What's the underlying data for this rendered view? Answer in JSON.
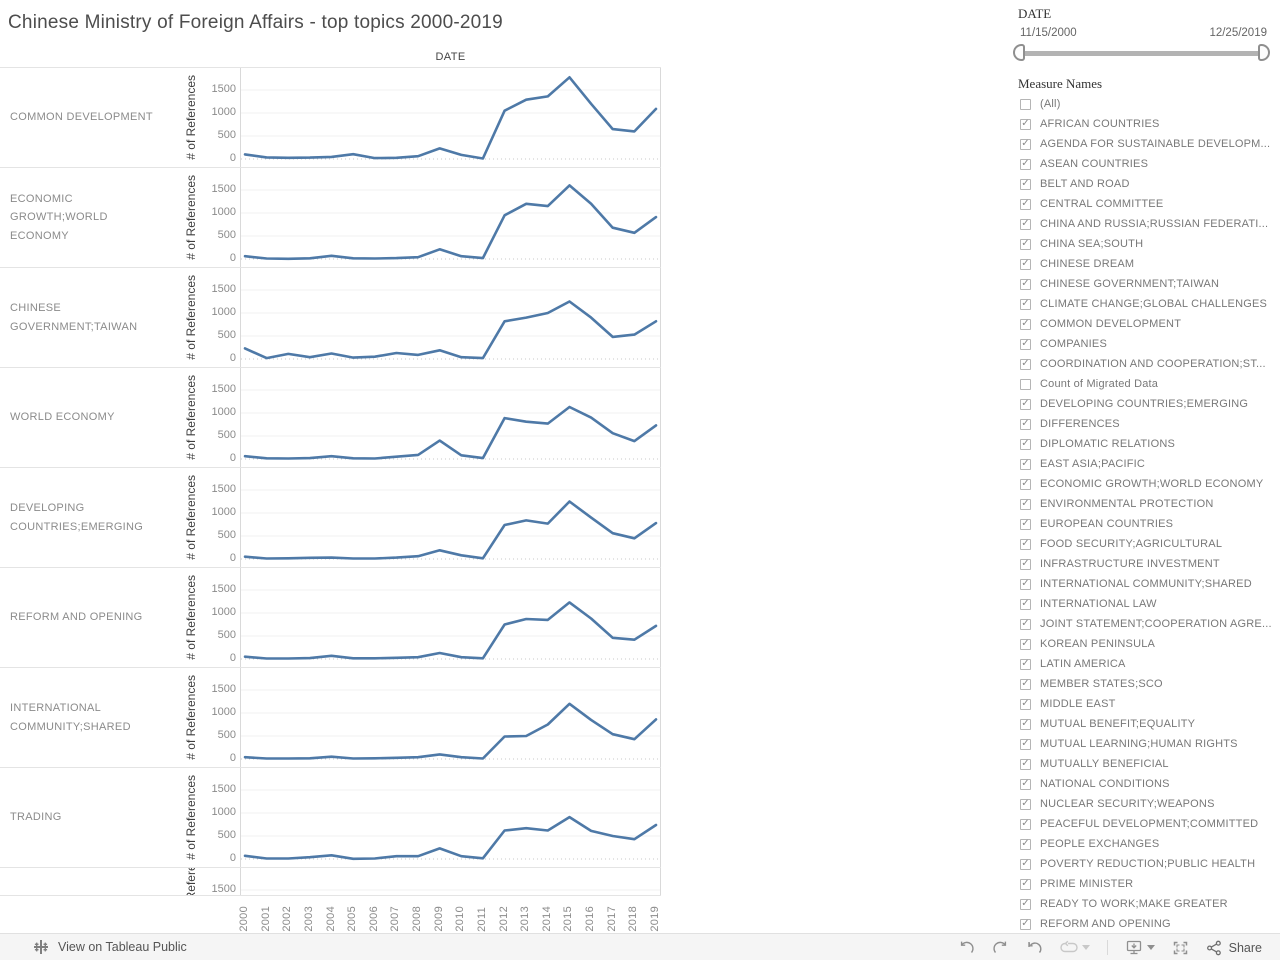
{
  "header": {
    "title": "Chinese Ministry of Foreign Affairs - top topics 2000-2019",
    "column_header": "DATE"
  },
  "chart_data": {
    "type": "line",
    "title": "Chinese Ministry of Foreign Affairs - top topics 2000-2019",
    "xlabel": "DATE",
    "ylabel": "# of References",
    "x": [
      "2000",
      "2001",
      "2002",
      "2003",
      "2004",
      "2005",
      "2006",
      "2007",
      "2008",
      "2009",
      "2010",
      "2011",
      "2012",
      "2013",
      "2014",
      "2015",
      "2016",
      "2017",
      "2018",
      "2019"
    ],
    "yticks": [
      1500,
      1000,
      500,
      0
    ],
    "ylim": [
      0,
      1875
    ],
    "grid": "light horizontal, dotted zero line",
    "line_color": "#4e79a7",
    "series": [
      {
        "name": "COMMON DEVELOPMENT",
        "values": [
          100,
          35,
          25,
          30,
          45,
          105,
          20,
          25,
          60,
          230,
          90,
          10,
          1050,
          1290,
          1360,
          1775,
          1200,
          650,
          600,
          1090
        ]
      },
      {
        "name": "ECONOMIC GROWTH;WORLD ECONOMY",
        "values": [
          60,
          10,
          5,
          15,
          70,
          15,
          10,
          20,
          40,
          210,
          60,
          20,
          950,
          1200,
          1150,
          1600,
          1200,
          680,
          570,
          910
        ]
      },
      {
        "name": "CHINESE GOVERNMENT;TAIWAN",
        "values": [
          230,
          20,
          110,
          40,
          120,
          30,
          50,
          130,
          90,
          190,
          40,
          20,
          820,
          900,
          1000,
          1250,
          900,
          480,
          530,
          820
        ]
      },
      {
        "name": "WORLD ECONOMY",
        "values": [
          60,
          15,
          10,
          20,
          60,
          15,
          10,
          50,
          90,
          400,
          80,
          20,
          890,
          810,
          770,
          1130,
          900,
          560,
          390,
          730
        ]
      },
      {
        "name": "DEVELOPING COUNTRIES;EMERGING",
        "values": [
          50,
          10,
          15,
          25,
          30,
          10,
          10,
          30,
          60,
          190,
          80,
          15,
          740,
          840,
          770,
          1250,
          900,
          560,
          450,
          780
        ]
      },
      {
        "name": "REFORM AND OPENING",
        "values": [
          50,
          10,
          10,
          20,
          70,
          15,
          15,
          25,
          40,
          130,
          40,
          15,
          750,
          870,
          850,
          1230,
          880,
          460,
          420,
          720
        ]
      },
      {
        "name": "INTERNATIONAL COMMUNITY;SHARED",
        "values": [
          40,
          10,
          10,
          15,
          50,
          10,
          15,
          25,
          40,
          100,
          40,
          10,
          490,
          500,
          750,
          1200,
          850,
          540,
          430,
          860
        ]
      },
      {
        "name": "TRADING",
        "values": [
          70,
          10,
          10,
          40,
          80,
          5,
          10,
          60,
          60,
          230,
          60,
          15,
          620,
          670,
          620,
          910,
          610,
          500,
          430,
          740
        ]
      }
    ],
    "partial_row": {
      "visible_tick": "1500",
      "note": "ninth small-multiple cut off by viewport"
    },
    "legend": "none"
  },
  "filters": {
    "date": {
      "title": "DATE",
      "start": "11/15/2000",
      "end": "12/25/2019"
    },
    "measures": {
      "title": "Measure Names",
      "items": [
        {
          "label": "(All)",
          "checked": false
        },
        {
          "label": "AFRICAN COUNTRIES",
          "checked": true
        },
        {
          "label": "AGENDA FOR SUSTAINABLE DEVELOPM...",
          "checked": true
        },
        {
          "label": "ASEAN COUNTRIES",
          "checked": true
        },
        {
          "label": "BELT AND ROAD",
          "checked": true
        },
        {
          "label": "CENTRAL COMMITTEE",
          "checked": true
        },
        {
          "label": "CHINA AND RUSSIA;RUSSIAN FEDERATI...",
          "checked": true
        },
        {
          "label": "CHINA SEA;SOUTH",
          "checked": true
        },
        {
          "label": "CHINESE DREAM",
          "checked": true
        },
        {
          "label": "CHINESE GOVERNMENT;TAIWAN",
          "checked": true
        },
        {
          "label": "CLIMATE CHANGE;GLOBAL CHALLENGES",
          "checked": true
        },
        {
          "label": "COMMON DEVELOPMENT",
          "checked": true
        },
        {
          "label": "COMPANIES",
          "checked": true
        },
        {
          "label": "COORDINATION AND COOPERATION;ST...",
          "checked": true
        },
        {
          "label": "Count of Migrated Data",
          "checked": false
        },
        {
          "label": "DEVELOPING COUNTRIES;EMERGING",
          "checked": true
        },
        {
          "label": "DIFFERENCES",
          "checked": true
        },
        {
          "label": "DIPLOMATIC RELATIONS",
          "checked": true
        },
        {
          "label": "EAST ASIA;PACIFIC",
          "checked": true
        },
        {
          "label": "ECONOMIC GROWTH;WORLD ECONOMY",
          "checked": true
        },
        {
          "label": "ENVIRONMENTAL PROTECTION",
          "checked": true
        },
        {
          "label": "EUROPEAN COUNTRIES",
          "checked": true
        },
        {
          "label": "FOOD SECURITY;AGRICULTURAL",
          "checked": true
        },
        {
          "label": "INFRASTRUCTURE INVESTMENT",
          "checked": true
        },
        {
          "label": "INTERNATIONAL COMMUNITY;SHARED",
          "checked": true
        },
        {
          "label": "INTERNATIONAL LAW",
          "checked": true
        },
        {
          "label": "JOINT STATEMENT;COOPERATION AGRE...",
          "checked": true
        },
        {
          "label": "KOREAN PENINSULA",
          "checked": true
        },
        {
          "label": "LATIN AMERICA",
          "checked": true
        },
        {
          "label": "MEMBER STATES;SCO",
          "checked": true
        },
        {
          "label": "MIDDLE EAST",
          "checked": true
        },
        {
          "label": "MUTUAL BENEFIT;EQUALITY",
          "checked": true
        },
        {
          "label": "MUTUAL LEARNING;HUMAN RIGHTS",
          "checked": true
        },
        {
          "label": "MUTUALLY BENEFICIAL",
          "checked": true
        },
        {
          "label": "NATIONAL CONDITIONS",
          "checked": true
        },
        {
          "label": "NUCLEAR SECURITY;WEAPONS",
          "checked": true
        },
        {
          "label": "PEACEFUL DEVELOPMENT;COMMITTED",
          "checked": true
        },
        {
          "label": "PEOPLE EXCHANGES",
          "checked": true
        },
        {
          "label": "POVERTY REDUCTION;PUBLIC HEALTH",
          "checked": true
        },
        {
          "label": "PRIME MINISTER",
          "checked": true
        },
        {
          "label": "READY TO WORK;MAKE GREATER",
          "checked": true
        },
        {
          "label": "REFORM AND OPENING",
          "checked": true
        }
      ]
    }
  },
  "footer": {
    "view_label": "View on Tableau Public",
    "share_label": "Share",
    "icons": [
      "tableau-logo-icon",
      "undo-icon",
      "redo-icon",
      "reset-icon",
      "auto-update-icon",
      "caret-down-icon",
      "download-device-icon",
      "caret-down-icon",
      "fullscreen-icon",
      "share-icon"
    ]
  },
  "icons": {
    "check_glyph": "✓"
  },
  "colors": {
    "line": "#4e79a7",
    "title_text": "#4d4d4d",
    "muted_text": "#8b8b8b",
    "border": "#e4e4e4",
    "footer_bg": "#f5f5f5",
    "icon": "#8f8f8f",
    "icon_disabled": "#c8c8c8"
  }
}
